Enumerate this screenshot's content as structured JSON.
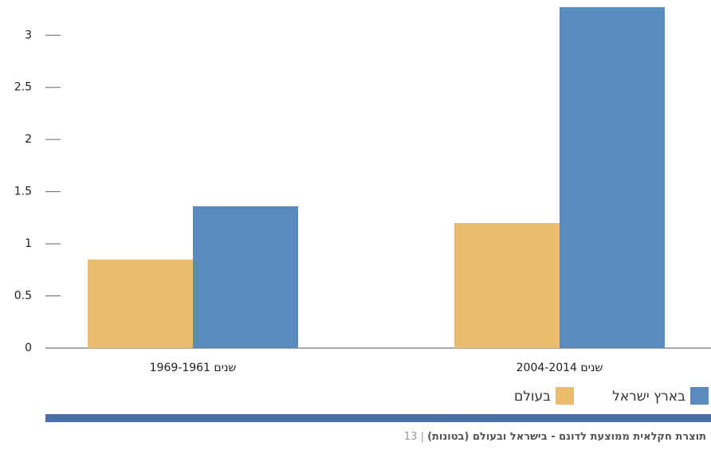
{
  "chart_data": {
    "type": "bar",
    "categories": [
      "1969-1961 שנים",
      "2004-2014 שנים"
    ],
    "series": [
      {
        "name": "בעולם",
        "color": "#ebbb6e",
        "values": [
          0.85,
          1.2
        ]
      },
      {
        "name": "בארץ ישראל",
        "color": "#5a8bbf",
        "values": [
          1.36,
          3.27
        ]
      }
    ],
    "ylim": [
      0,
      3.3
    ],
    "yticks": [
      0,
      0.5,
      1,
      1.5,
      2,
      2.5,
      3
    ],
    "caption": {
      "title": "תוצרת חקלאית ממוצעת לדונם - בישראל ובעולם (בטונות)",
      "separator": "|",
      "figure_number": "13"
    }
  }
}
